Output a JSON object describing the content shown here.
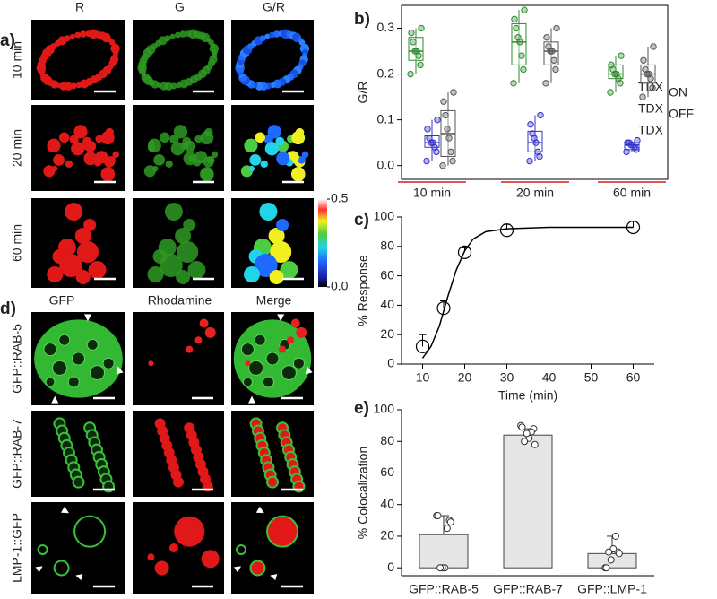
{
  "micrographs_a": {
    "label": "a)",
    "columns": [
      "R",
      "G",
      "G/R"
    ],
    "rows": [
      "10 min",
      "20 min",
      "60 min"
    ],
    "colorbar": {
      "ticks": [
        {
          "value": 0.5,
          "label": "0.5"
        },
        {
          "value": 0,
          "label": "0.0"
        }
      ],
      "lim": [
        0,
        0.5
      ]
    }
  },
  "micrographs_d": {
    "label": "d)",
    "columns": [
      "GFP",
      "Rhodamine",
      "Merge"
    ],
    "rows": [
      "GFP::RAB-5",
      "GFP::RAB-7",
      "LMP-1::GFP"
    ]
  },
  "chart_data": [
    {
      "type": "box",
      "label": "b)",
      "y_label": "G/R",
      "categories": [
        "10 min",
        "20 min",
        "60 min"
      ],
      "ylim": [
        -0.03,
        0.35
      ],
      "yticks": [
        {
          "value": 0,
          "label": "0.0"
        },
        {
          "value": 0.1,
          "label": "0.1"
        },
        {
          "value": 0.2,
          "label": "0.2"
        },
        {
          "value": 0.3,
          "label": "0.3"
        }
      ],
      "series": [
        {
          "name": "TDX",
          "name_sub": "ON",
          "color": "#2e8b2e",
          "min": [
            0.2,
            0.18,
            0.16
          ],
          "q1": [
            0.23,
            0.22,
            0.19
          ],
          "median": [
            0.25,
            0.27,
            0.2
          ],
          "q3": [
            0.28,
            0.31,
            0.22
          ],
          "max": [
            0.3,
            0.34,
            0.24
          ],
          "points": [
            [
              0.2,
              0.22,
              0.24,
              0.25,
              0.25,
              0.27,
              0.29,
              0.3
            ],
            [
              0.18,
              0.21,
              0.24,
              0.27,
              0.28,
              0.3,
              0.32,
              0.34
            ],
            [
              0.16,
              0.18,
              0.19,
              0.2,
              0.2,
              0.21,
              0.22,
              0.24
            ]
          ]
        },
        {
          "name": "TDX",
          "name_sub": "OFF",
          "color": "#3333cc",
          "min": [
            0.01,
            0.01,
            0.03
          ],
          "q1": [
            0.04,
            0.03,
            0.035
          ],
          "median": [
            0.05,
            0.05,
            0.045
          ],
          "q3": [
            0.065,
            0.075,
            0.05
          ],
          "max": [
            0.1,
            0.11,
            0.055
          ],
          "points": [
            [
              0.01,
              0.03,
              0.04,
              0.05,
              0.05,
              0.06,
              0.08,
              0.1
            ],
            [
              0.01,
              0.02,
              0.03,
              0.05,
              0.06,
              0.07,
              0.09,
              0.11
            ],
            [
              0.03,
              0.035,
              0.04,
              0.045,
              0.045,
              0.05,
              0.05,
              0.055
            ]
          ]
        },
        {
          "name": "TDX",
          "color": "#555555",
          "min": [
            0,
            0.18,
            0.15
          ],
          "q1": [
            0.02,
            0.22,
            0.18
          ],
          "median": [
            0.07,
            0.25,
            0.2
          ],
          "q3": [
            0.12,
            0.27,
            0.22
          ],
          "max": [
            0.16,
            0.3,
            0.26
          ],
          "points": [
            [
              0,
              0.01,
              0.03,
              0.06,
              0.08,
              0.11,
              0.14,
              0.16
            ],
            [
              0.18,
              0.21,
              0.23,
              0.25,
              0.25,
              0.26,
              0.28,
              0.3
            ],
            [
              0.15,
              0.17,
              0.19,
              0.2,
              0.2,
              0.21,
              0.23,
              0.26
            ]
          ]
        }
      ]
    },
    {
      "type": "line",
      "label": "c)",
      "x_label": "Time (min)",
      "y_label": "% Response",
      "x": [
        10,
        15,
        20,
        30,
        60
      ],
      "values": [
        12,
        38,
        76,
        91,
        93
      ],
      "errors": [
        8,
        5,
        3,
        4,
        4
      ],
      "fit": {
        "x": [
          10,
          12,
          14,
          16,
          18,
          20,
          22,
          25,
          30,
          40,
          60
        ],
        "values": [
          4,
          12,
          26,
          46,
          64,
          77,
          85,
          90,
          92,
          93,
          93
        ]
      },
      "xlim": [
        5,
        65
      ],
      "xticks": [
        10,
        20,
        30,
        40,
        50,
        60
      ],
      "ylim": [
        0,
        100
      ],
      "yticks": [
        0,
        20,
        40,
        60,
        80,
        100
      ]
    },
    {
      "type": "bar",
      "label": "e)",
      "y_label": "% Colocalization",
      "color": "#e6e6e6",
      "categories": [
        "GFP::RAB-5",
        "GFP::RAB-7",
        "GFP::LMP-1"
      ],
      "values": [
        21,
        84,
        9
      ],
      "errors": [
        12,
        4,
        11
      ],
      "points": [
        [
          33,
          30,
          25,
          0,
          0,
          0,
          33,
          29
        ],
        [
          90,
          88,
          86,
          82,
          85,
          80,
          89,
          78
        ],
        [
          0,
          10,
          20,
          12,
          5,
          10,
          0,
          9
        ]
      ],
      "ylim": [
        -5,
        100
      ],
      "yticks": [
        0,
        20,
        40,
        60,
        80,
        100
      ]
    }
  ]
}
